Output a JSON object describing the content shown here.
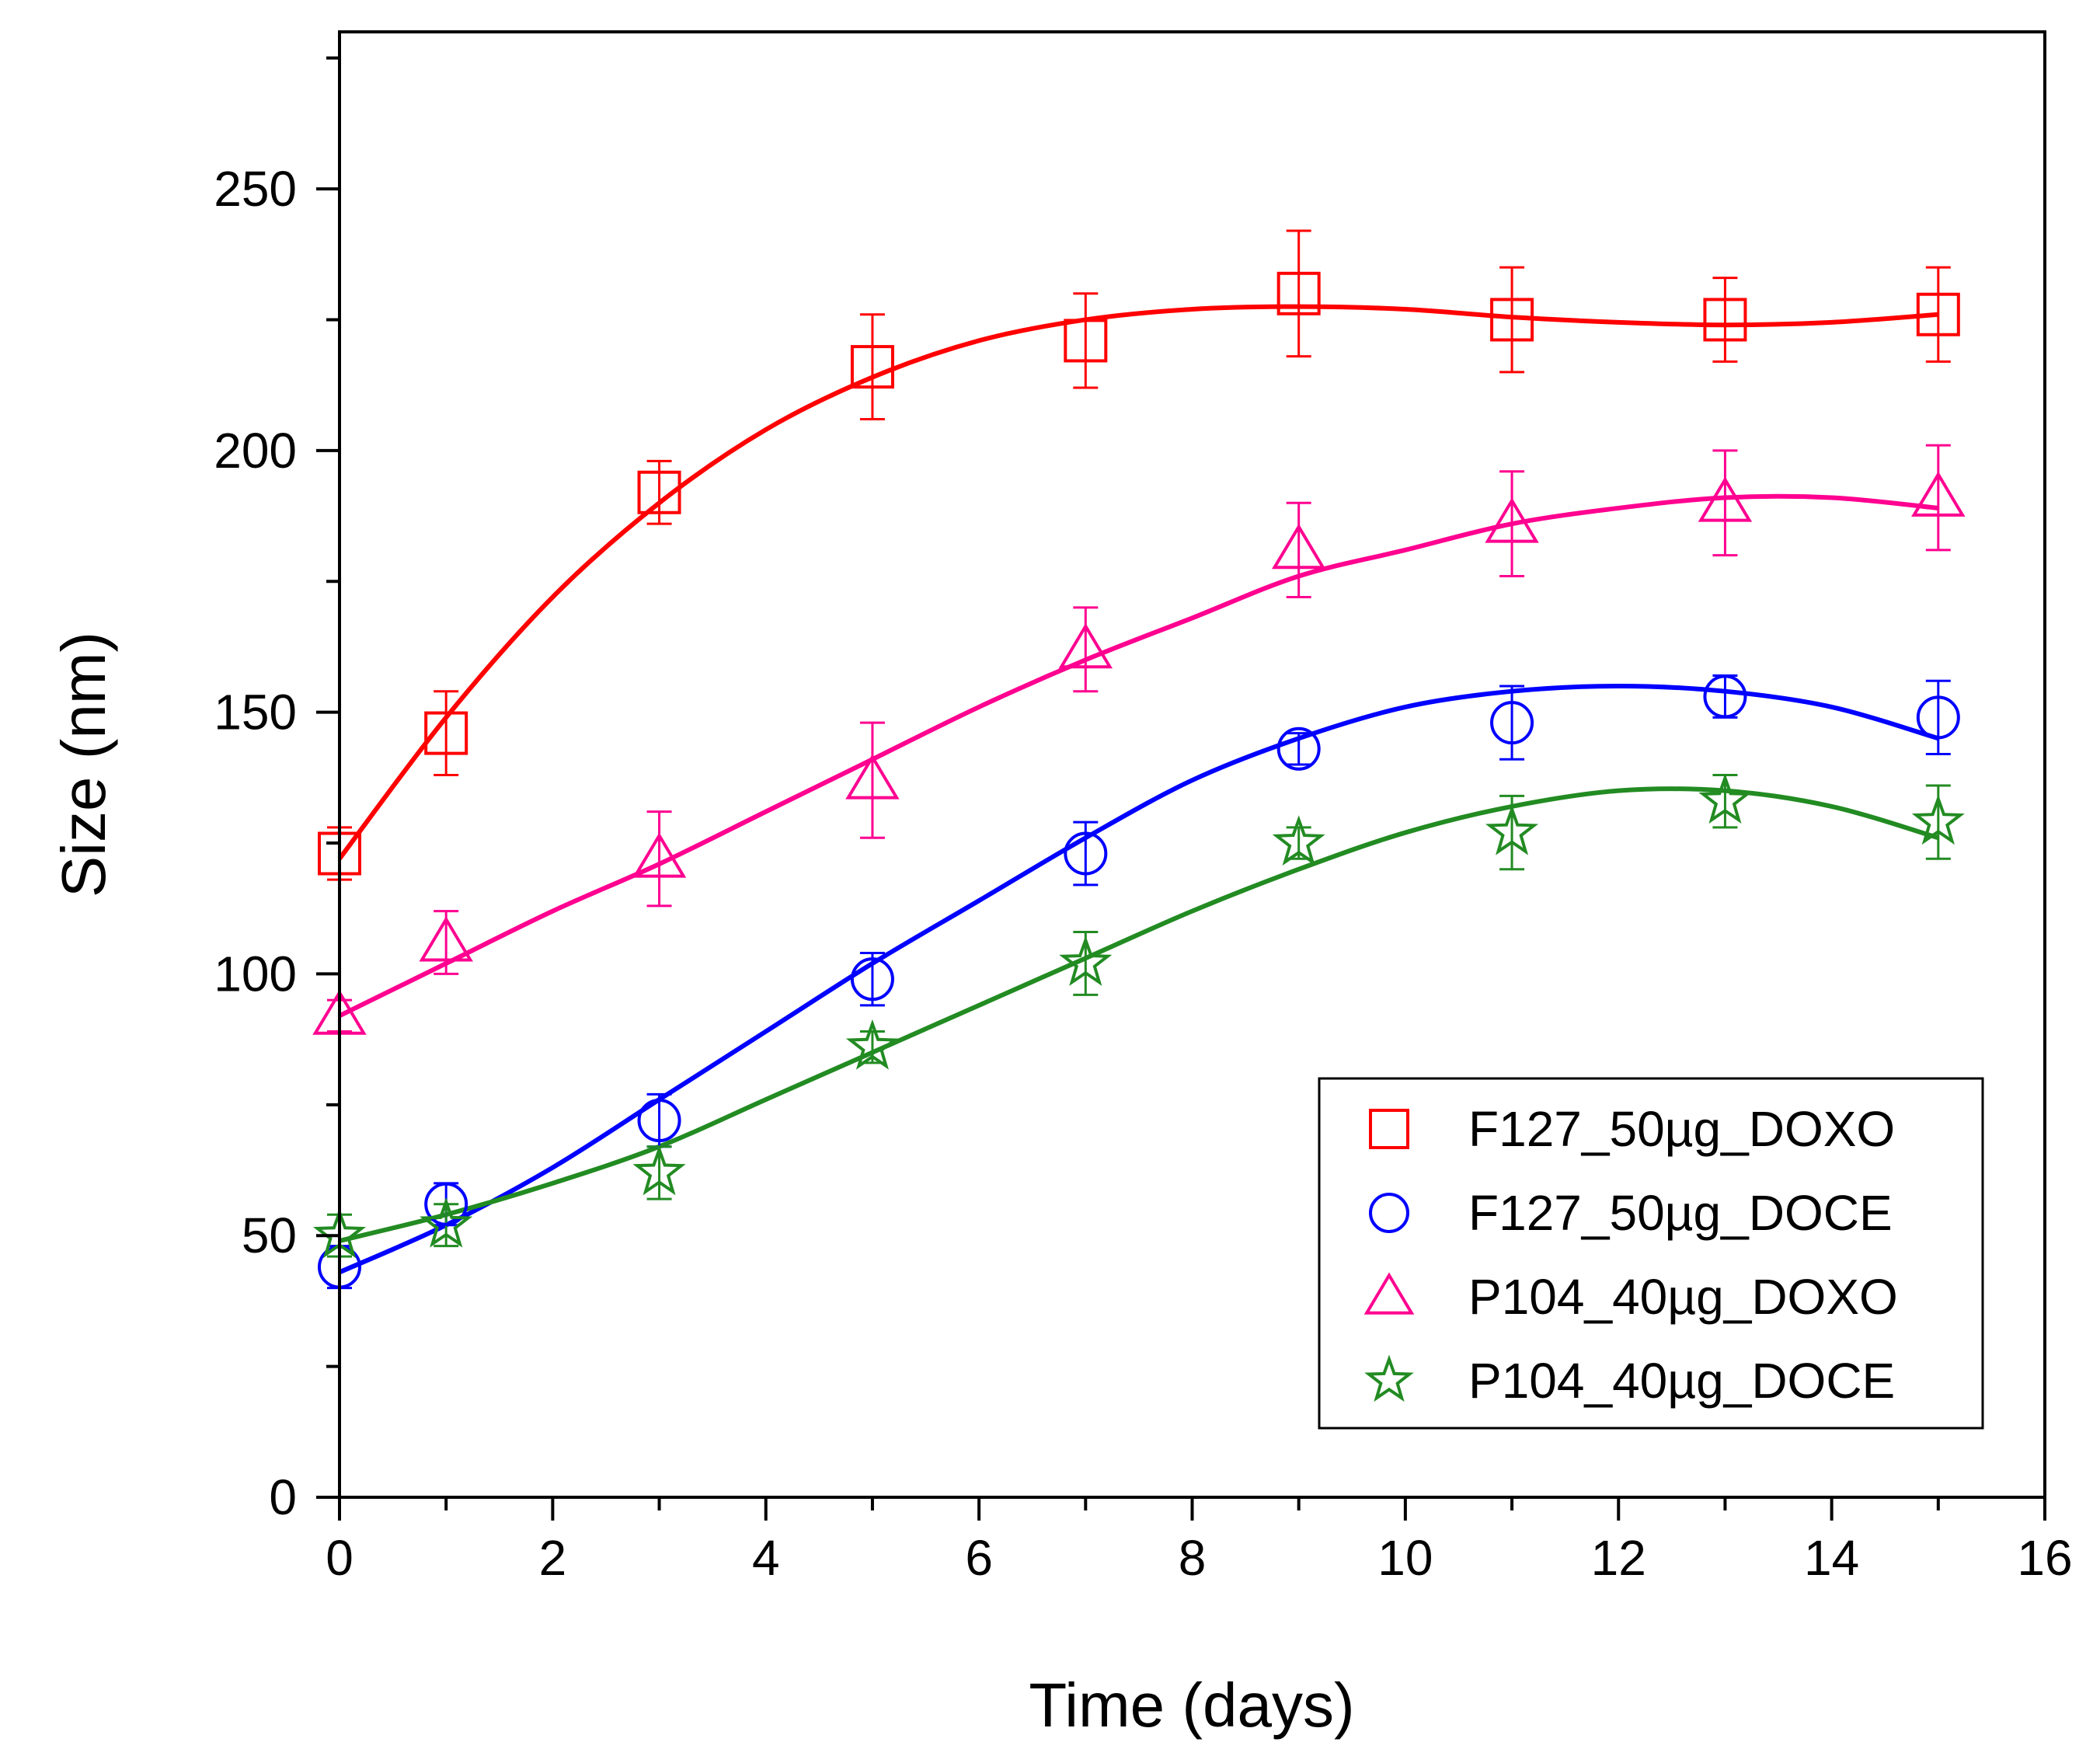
{
  "chart_data": {
    "type": "scatter",
    "xlabel": "Time (days)",
    "ylabel": "Size (nm)",
    "xlim": [
      0,
      16
    ],
    "ylim": [
      0,
      280
    ],
    "x_ticks": [
      0,
      2,
      4,
      6,
      8,
      10,
      12,
      14,
      16
    ],
    "y_ticks": [
      0,
      50,
      100,
      150,
      200,
      250
    ],
    "grid": false,
    "legend_position": "bottom-right",
    "series": [
      {
        "name": "F127_50µg_DOXO",
        "color": "#ff0000",
        "marker": "square",
        "x": [
          0,
          1,
          3,
          5,
          7,
          9,
          11,
          13,
          15
        ],
        "y": [
          123,
          146,
          192,
          216,
          221,
          230,
          225,
          225,
          226
        ],
        "err": [
          5,
          8,
          6,
          10,
          9,
          12,
          10,
          8,
          9
        ],
        "fit": [
          [
            0,
            122
          ],
          [
            1,
            149
          ],
          [
            2,
            172
          ],
          [
            3,
            190
          ],
          [
            4,
            204
          ],
          [
            5,
            214
          ],
          [
            6,
            221
          ],
          [
            7,
            225
          ],
          [
            8,
            227
          ],
          [
            9,
            227.5
          ],
          [
            10,
            227
          ],
          [
            11,
            225.5
          ],
          [
            12,
            224.5
          ],
          [
            13,
            224
          ],
          [
            14,
            224.5
          ],
          [
            15,
            226
          ]
        ]
      },
      {
        "name": "F127_50µg_DOCE",
        "color": "#0000ff",
        "marker": "circle",
        "x": [
          0,
          1,
          3,
          5,
          7,
          9,
          11,
          13,
          15
        ],
        "y": [
          44,
          56,
          72,
          99,
          123,
          143,
          148,
          153,
          149
        ],
        "err": [
          4,
          4,
          5,
          5,
          6,
          3,
          7,
          4,
          7
        ],
        "fit": [
          [
            0,
            43
          ],
          [
            1,
            52
          ],
          [
            2,
            63
          ],
          [
            3,
            76
          ],
          [
            4,
            89
          ],
          [
            5,
            102
          ],
          [
            6,
            114
          ],
          [
            7,
            126
          ],
          [
            8,
            137
          ],
          [
            9,
            145
          ],
          [
            10,
            151
          ],
          [
            11,
            154
          ],
          [
            12,
            155
          ],
          [
            13,
            154
          ],
          [
            14,
            151
          ],
          [
            15,
            145
          ]
        ]
      },
      {
        "name": "P104_40µg_DOXO",
        "color": "#ff0090",
        "marker": "triangle",
        "x": [
          0,
          1,
          3,
          5,
          7,
          9,
          11,
          13,
          15
        ],
        "y": [
          92,
          106,
          122,
          137,
          162,
          181,
          186,
          190,
          191
        ],
        "err": [
          3,
          6,
          9,
          11,
          8,
          9,
          10,
          10,
          10
        ],
        "fit": [
          [
            0,
            92
          ],
          [
            1,
            102
          ],
          [
            2,
            112
          ],
          [
            3,
            121
          ],
          [
            4,
            131
          ],
          [
            5,
            141
          ],
          [
            6,
            151
          ],
          [
            7,
            160
          ],
          [
            8,
            168
          ],
          [
            9,
            176
          ],
          [
            10,
            181
          ],
          [
            11,
            186
          ],
          [
            12,
            189
          ],
          [
            13,
            191
          ],
          [
            14,
            191
          ],
          [
            15,
            189
          ]
        ]
      },
      {
        "name": "P104_40µg_DOCE",
        "color": "#228b22",
        "marker": "star",
        "x": [
          0,
          1,
          3,
          5,
          7,
          9,
          11,
          13,
          15
        ],
        "y": [
          50,
          52,
          62,
          86,
          102,
          125,
          127,
          133,
          129
        ],
        "err": [
          4,
          4,
          5,
          3,
          6,
          3,
          7,
          5,
          7
        ],
        "fit": [
          [
            0,
            49
          ],
          [
            1,
            54
          ],
          [
            2,
            60
          ],
          [
            3,
            67
          ],
          [
            4,
            76
          ],
          [
            5,
            85
          ],
          [
            6,
            94
          ],
          [
            7,
            103
          ],
          [
            8,
            112
          ],
          [
            9,
            120
          ],
          [
            10,
            127
          ],
          [
            11,
            132
          ],
          [
            12,
            135
          ],
          [
            13,
            135
          ],
          [
            14,
            132
          ],
          [
            15,
            126
          ]
        ]
      }
    ]
  }
}
